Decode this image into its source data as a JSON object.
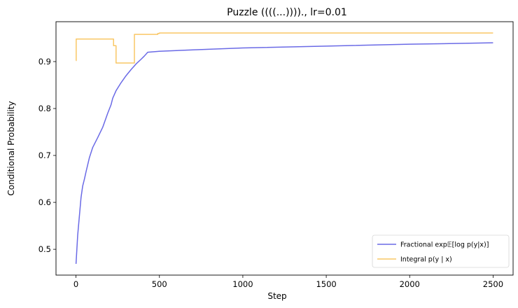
{
  "chart_data": {
    "type": "line",
    "title": "Puzzle ((((...)))).,  lr=0.01",
    "xlabel": "Step",
    "ylabel": "Conditional Probability",
    "xlim": [
      -120,
      2620
    ],
    "ylim": [
      0.445,
      0.985
    ],
    "xticks": [
      0,
      500,
      1000,
      1500,
      2000,
      2500
    ],
    "yticks": [
      0.5,
      0.6,
      0.7,
      0.8,
      0.9
    ],
    "ytick_labels": [
      "0.5",
      "0.6",
      "0.7",
      "0.8",
      "0.9"
    ],
    "grid": false,
    "legend_position": "lower-right",
    "series": [
      {
        "name": "Fractional exp𝔼[log p(y|x)]",
        "color": "#6a6ae6",
        "x": [
          0,
          10,
          20,
          30,
          40,
          50,
          60,
          80,
          100,
          130,
          160,
          190,
          210,
          220,
          240,
          270,
          300,
          330,
          360,
          390,
          410,
          430,
          500,
          700,
          1000,
          1500,
          2000,
          2500
        ],
        "y": [
          0.469,
          0.53,
          0.57,
          0.61,
          0.635,
          0.649,
          0.665,
          0.695,
          0.717,
          0.738,
          0.76,
          0.79,
          0.808,
          0.822,
          0.838,
          0.855,
          0.87,
          0.883,
          0.895,
          0.905,
          0.912,
          0.92,
          0.922,
          0.925,
          0.929,
          0.933,
          0.937,
          0.94
        ]
      },
      {
        "name": "Integral p(y | x)",
        "color": "#f9c766",
        "step": true,
        "x": [
          0,
          1,
          225,
          240,
          250,
          350,
          490,
          500,
          2500
        ],
        "y": [
          0.902,
          0.948,
          0.934,
          0.897,
          0.897,
          0.958,
          0.96,
          0.961,
          0.961
        ]
      }
    ]
  }
}
